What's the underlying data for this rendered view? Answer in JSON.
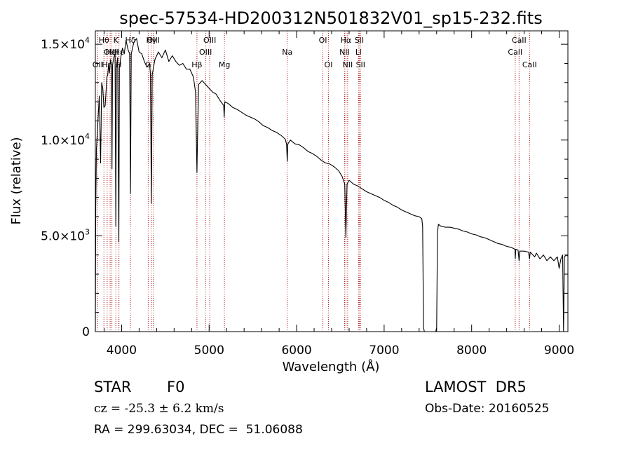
{
  "chart_data": {
    "type": "line",
    "title": "spec-57534-HD200312N501832V01_sp15-232.fits",
    "xlabel": "Wavelength (Å)",
    "ylabel": "Flux (relative)",
    "xlim": [
      3700,
      9100
    ],
    "ylim": [
      0,
      15700
    ],
    "x_ticks": [
      4000,
      5000,
      6000,
      7000,
      8000,
      9000
    ],
    "x_tick_labels": [
      "4000",
      "5000",
      "6000",
      "7000",
      "8000",
      "9000"
    ],
    "y_ticks": [
      0,
      5000,
      10000,
      15000
    ],
    "y_tick_labels": [
      {
        "mant": "0",
        "exp": ""
      },
      {
        "mant": "5.0×10",
        "exp": "3"
      },
      {
        "mant": "1.0×10",
        "exp": "4"
      },
      {
        "mant": "1.5×10",
        "exp": "4"
      }
    ],
    "grid": false,
    "series": [
      {
        "color": "#000000",
        "points": [
          [
            3700,
            0
          ],
          [
            3705,
            6500
          ],
          [
            3712,
            9500
          ],
          [
            3720,
            10200
          ],
          [
            3730,
            11000
          ],
          [
            3745,
            12300
          ],
          [
            3760,
            8800
          ],
          [
            3772,
            13000
          ],
          [
            3785,
            12700
          ],
          [
            3798,
            11700
          ],
          [
            3812,
            11800
          ],
          [
            3822,
            12500
          ],
          [
            3832,
            13300
          ],
          [
            3842,
            13400
          ],
          [
            3852,
            14000
          ],
          [
            3862,
            13500
          ],
          [
            3872,
            14200
          ],
          [
            3885,
            13900
          ],
          [
            3890,
            8500
          ],
          [
            3896,
            13900
          ],
          [
            3910,
            14300
          ],
          [
            3925,
            14500
          ],
          [
            3934,
            5500
          ],
          [
            3940,
            13800
          ],
          [
            3955,
            14300
          ],
          [
            3968,
            4700
          ],
          [
            3975,
            13800
          ],
          [
            3990,
            14300
          ],
          [
            4010,
            14800
          ],
          [
            4030,
            14500
          ],
          [
            4050,
            15200
          ],
          [
            4075,
            14700
          ],
          [
            4092,
            14500
          ],
          [
            4101,
            7200
          ],
          [
            4110,
            14500
          ],
          [
            4140,
            15100
          ],
          [
            4170,
            15300
          ],
          [
            4200,
            14600
          ],
          [
            4230,
            14500
          ],
          [
            4260,
            14100
          ],
          [
            4290,
            13800
          ],
          [
            4320,
            14000
          ],
          [
            4330,
            13400
          ],
          [
            4340,
            6700
          ],
          [
            4350,
            13400
          ],
          [
            4380,
            14200
          ],
          [
            4420,
            14600
          ],
          [
            4460,
            14300
          ],
          [
            4500,
            14700
          ],
          [
            4540,
            14100
          ],
          [
            4580,
            14400
          ],
          [
            4620,
            14100
          ],
          [
            4660,
            13900
          ],
          [
            4700,
            14000
          ],
          [
            4740,
            13700
          ],
          [
            4780,
            13700
          ],
          [
            4820,
            13300
          ],
          [
            4845,
            12500
          ],
          [
            4855,
            9800
          ],
          [
            4861,
            8300
          ],
          [
            4867,
            10000
          ],
          [
            4880,
            12900
          ],
          [
            4920,
            13100
          ],
          [
            4960,
            12900
          ],
          [
            5000,
            12700
          ],
          [
            5040,
            12500
          ],
          [
            5080,
            12400
          ],
          [
            5120,
            12100
          ],
          [
            5167,
            11800
          ],
          [
            5172,
            11200
          ],
          [
            5180,
            12000
          ],
          [
            5220,
            11900
          ],
          [
            5270,
            11700
          ],
          [
            5320,
            11600
          ],
          [
            5370,
            11450
          ],
          [
            5420,
            11300
          ],
          [
            5470,
            11200
          ],
          [
            5520,
            11100
          ],
          [
            5570,
            10950
          ],
          [
            5620,
            10750
          ],
          [
            5670,
            10650
          ],
          [
            5720,
            10500
          ],
          [
            5770,
            10400
          ],
          [
            5820,
            10250
          ],
          [
            5870,
            10050
          ],
          [
            5885,
            9800
          ],
          [
            5893,
            8900
          ],
          [
            5900,
            9800
          ],
          [
            5930,
            10000
          ],
          [
            5980,
            9800
          ],
          [
            6030,
            9750
          ],
          [
            6080,
            9600
          ],
          [
            6130,
            9400
          ],
          [
            6180,
            9300
          ],
          [
            6230,
            9150
          ],
          [
            6280,
            8950
          ],
          [
            6330,
            8800
          ],
          [
            6380,
            8750
          ],
          [
            6430,
            8600
          ],
          [
            6480,
            8400
          ],
          [
            6520,
            8100
          ],
          [
            6550,
            7700
          ],
          [
            6563,
            4900
          ],
          [
            6576,
            7700
          ],
          [
            6600,
            7900
          ],
          [
            6650,
            7700
          ],
          [
            6700,
            7600
          ],
          [
            6750,
            7450
          ],
          [
            6800,
            7300
          ],
          [
            6850,
            7200
          ],
          [
            6900,
            7100
          ],
          [
            6950,
            7000
          ],
          [
            7000,
            6850
          ],
          [
            7050,
            6750
          ],
          [
            7100,
            6600
          ],
          [
            7150,
            6500
          ],
          [
            7200,
            6350
          ],
          [
            7250,
            6250
          ],
          [
            7300,
            6150
          ],
          [
            7350,
            6050
          ],
          [
            7400,
            6000
          ],
          [
            7430,
            5900
          ],
          [
            7440,
            5500
          ],
          [
            7450,
            200
          ],
          [
            7460,
            0
          ],
          [
            7590,
            0
          ],
          [
            7600,
            200
          ],
          [
            7610,
            5200
          ],
          [
            7620,
            5600
          ],
          [
            7650,
            5500
          ],
          [
            7700,
            5450
          ],
          [
            7750,
            5450
          ],
          [
            7800,
            5400
          ],
          [
            7850,
            5350
          ],
          [
            7900,
            5250
          ],
          [
            7950,
            5200
          ],
          [
            8000,
            5100
          ],
          [
            8050,
            5050
          ],
          [
            8100,
            4950
          ],
          [
            8150,
            4900
          ],
          [
            8200,
            4800
          ],
          [
            8250,
            4700
          ],
          [
            8300,
            4600
          ],
          [
            8350,
            4550
          ],
          [
            8400,
            4450
          ],
          [
            8450,
            4400
          ],
          [
            8495,
            4300
          ],
          [
            8498,
            3800
          ],
          [
            8505,
            4300
          ],
          [
            8530,
            4250
          ],
          [
            8542,
            3700
          ],
          [
            8550,
            4200
          ],
          [
            8600,
            4200
          ],
          [
            8650,
            4150
          ],
          [
            8662,
            3800
          ],
          [
            8670,
            4150
          ],
          [
            8720,
            3900
          ],
          [
            8740,
            4100
          ],
          [
            8780,
            3800
          ],
          [
            8820,
            4000
          ],
          [
            8860,
            3700
          ],
          [
            8900,
            3900
          ],
          [
            8940,
            3700
          ],
          [
            8980,
            3900
          ],
          [
            9000,
            3300
          ],
          [
            9020,
            3800
          ],
          [
            9040,
            4000
          ],
          [
            9050,
            0
          ],
          [
            9060,
            3900
          ],
          [
            9080,
            4000
          ],
          [
            9100,
            3950
          ]
        ]
      }
    ],
    "lines": [
      {
        "w": 3727,
        "label": "OII",
        "row": 3
      },
      {
        "w": 3798,
        "label": "Hθ",
        "row": 1
      },
      {
        "w": 3835,
        "label": "Hη",
        "row": 3
      },
      {
        "w": 3869,
        "label": "OIII",
        "row": 2
      },
      {
        "w": 3889,
        "label": "HeI",
        "row": 2
      },
      {
        "w": 3934,
        "label": "K",
        "row": 1
      },
      {
        "w": 3968,
        "label": "H",
        "row": 3
      },
      {
        "w": 3970,
        "label": "Hε",
        "row": 2
      },
      {
        "w": 4101,
        "label": "Hδ",
        "row": 1
      },
      {
        "w": 4304,
        "label": "G",
        "row": 3
      },
      {
        "w": 4340,
        "label": "Hγ",
        "row": 1
      },
      {
        "w": 4363,
        "label": "OIII",
        "row": 1
      },
      {
        "w": 4861,
        "label": "Hβ",
        "row": 3
      },
      {
        "w": 4959,
        "label": "OIII",
        "row": 2
      },
      {
        "w": 5007,
        "label": "OIII",
        "row": 1
      },
      {
        "w": 5175,
        "label": "Mg",
        "row": 3
      },
      {
        "w": 5893,
        "label": "Na",
        "row": 2
      },
      {
        "w": 6300,
        "label": "OI",
        "row": 1
      },
      {
        "w": 6364,
        "label": "OI",
        "row": 3
      },
      {
        "w": 6548,
        "label": "NII",
        "row": 2
      },
      {
        "w": 6563,
        "label": "Hα",
        "row": 1
      },
      {
        "w": 6583,
        "label": "NII",
        "row": 3
      },
      {
        "w": 6708,
        "label": "Li",
        "row": 2
      },
      {
        "w": 6716,
        "label": "SII",
        "row": 1
      },
      {
        "w": 6731,
        "label": "SII",
        "row": 3
      },
      {
        "w": 8498,
        "label": "CaII",
        "row": 2
      },
      {
        "w": 8542,
        "label": "CaII",
        "row": 1
      },
      {
        "w": 8662,
        "label": "CaII",
        "row": 3
      }
    ]
  },
  "info": {
    "object_class": "STAR",
    "subclass": "F0",
    "survey": "LAMOST  DR5",
    "redshift": "cz = -25.3 ± 6.2 km/s",
    "obs_date": "Obs-Date: 20160525",
    "coords": "RA = 299.63034, DEC =  51.06088"
  },
  "colors": {
    "spectrum": "#000000",
    "line_markers": "#b22222",
    "axes": "#000000",
    "background": "#ffffff"
  }
}
